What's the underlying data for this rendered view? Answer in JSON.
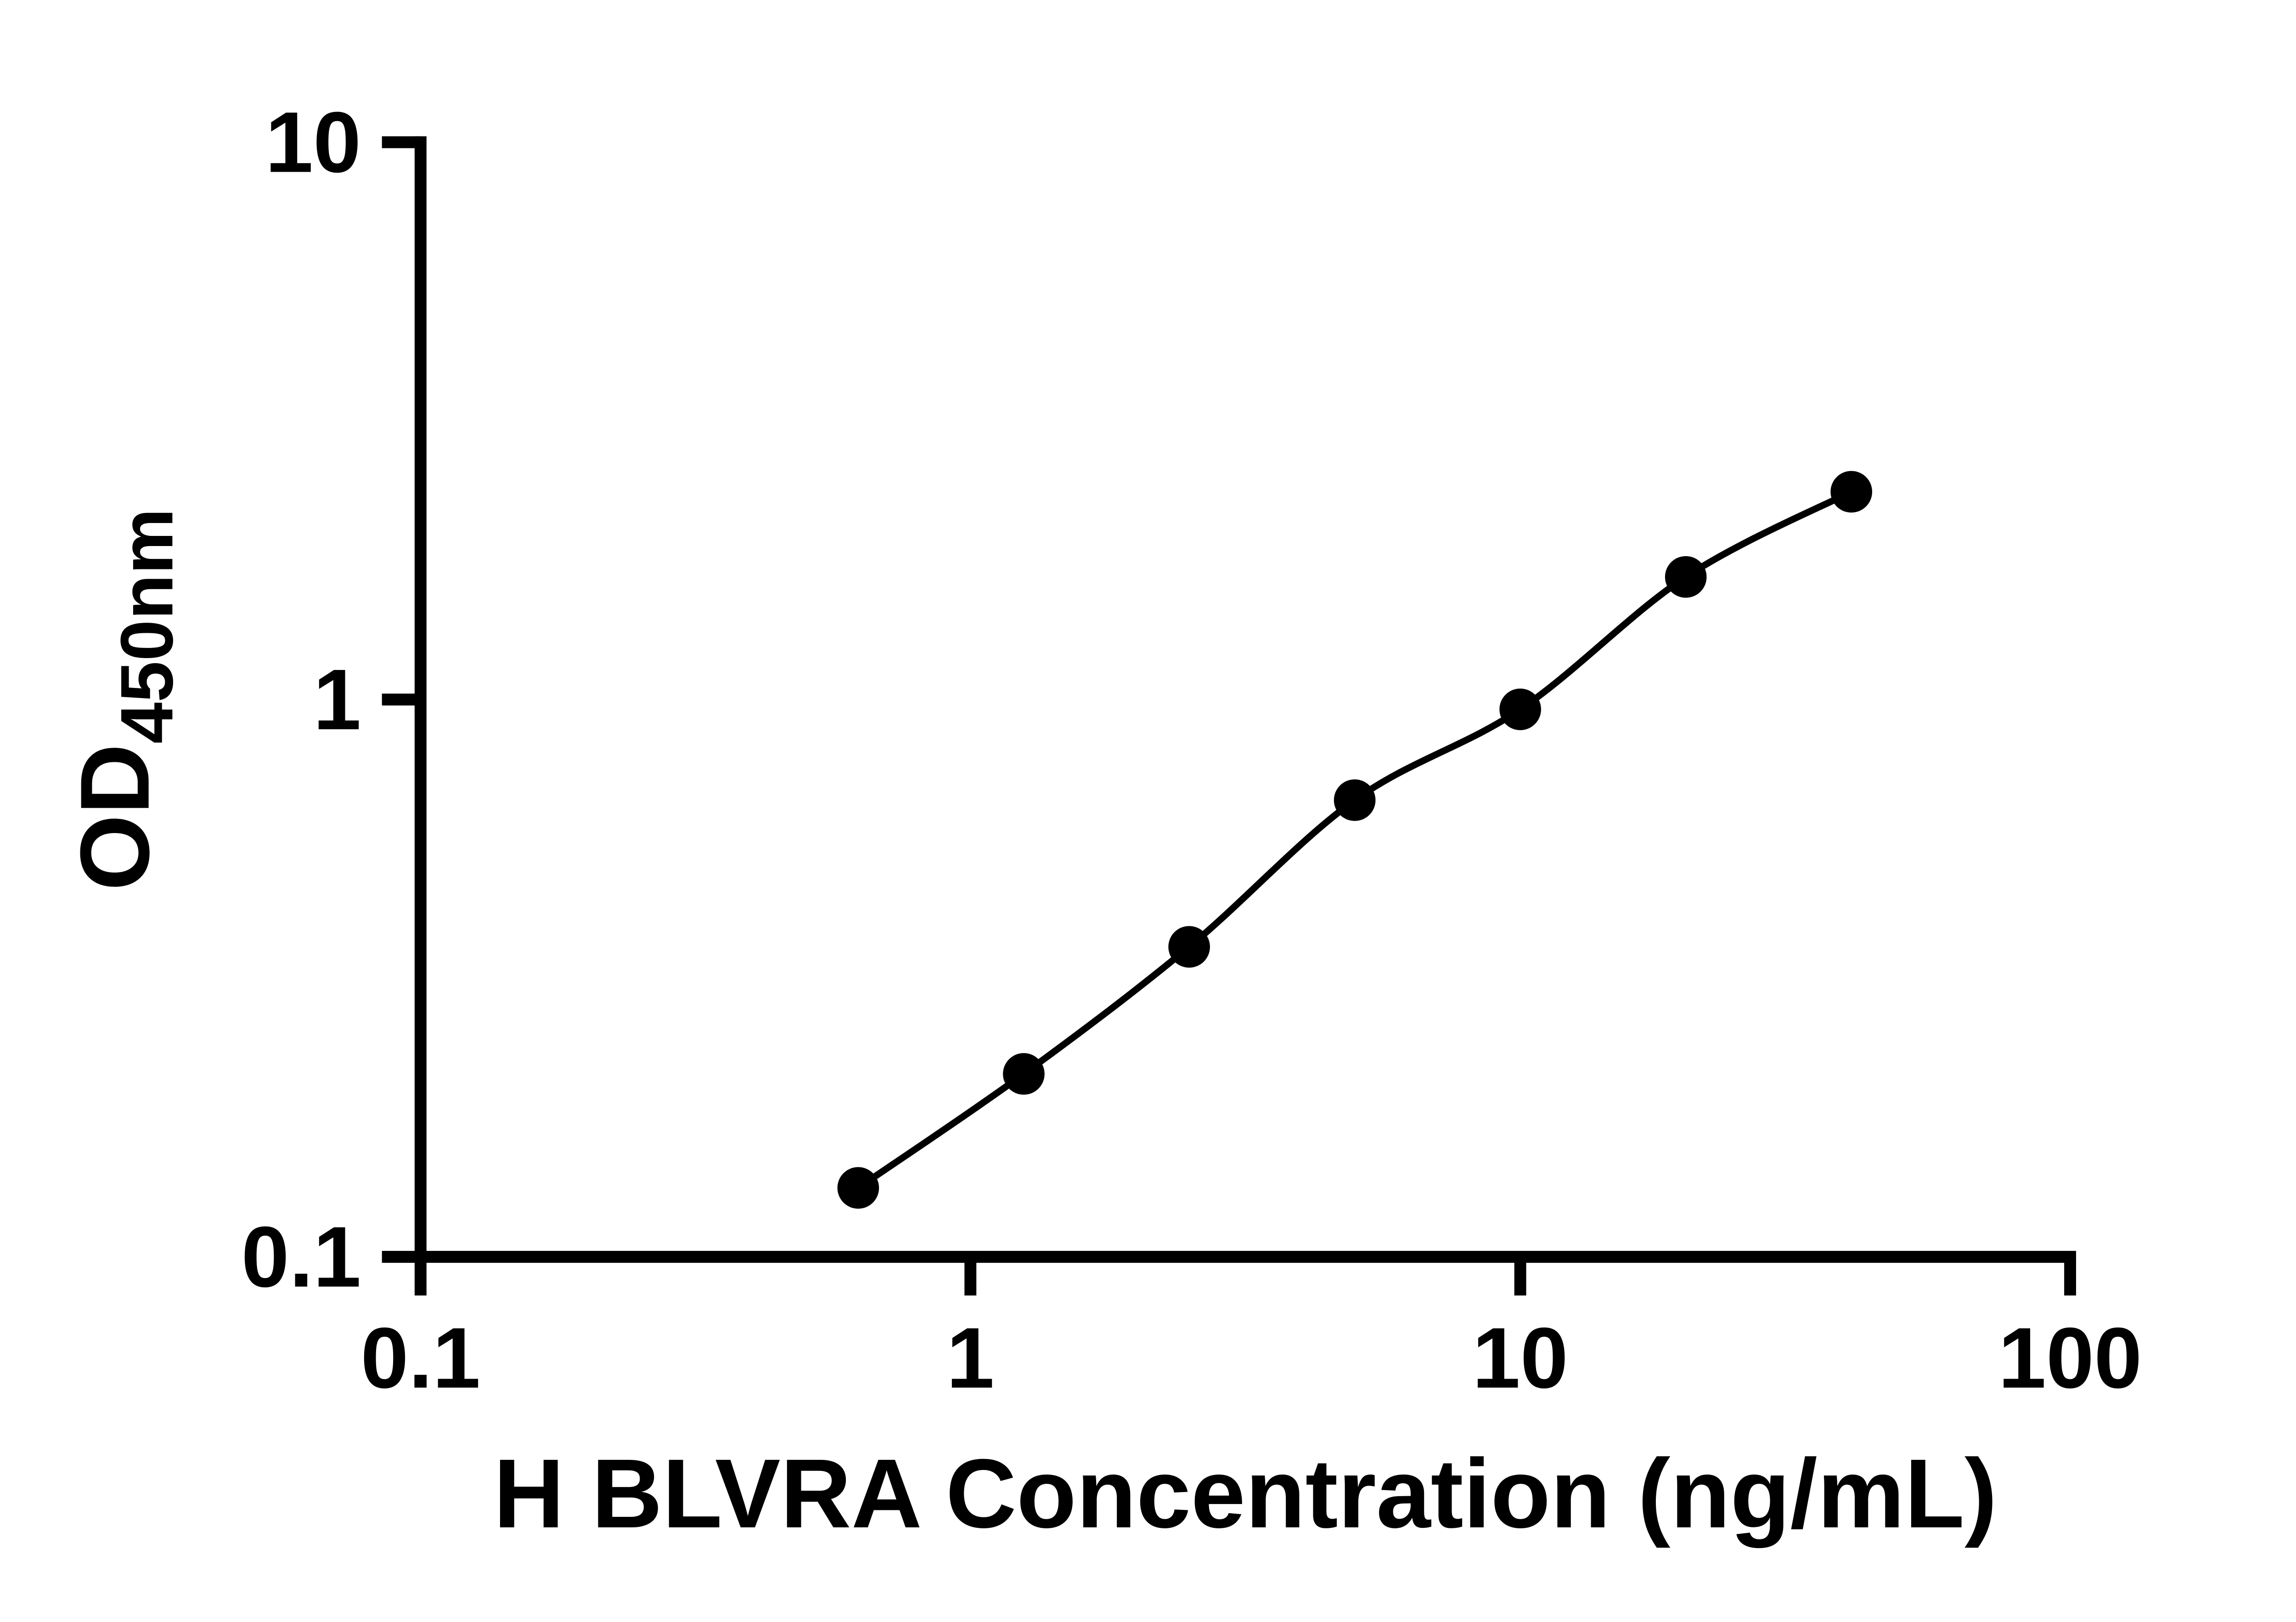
{
  "chart_data": {
    "type": "scatter",
    "title": "",
    "x": [
      0.625,
      1.25,
      2.5,
      5,
      10,
      20,
      40
    ],
    "y": [
      0.133,
      0.213,
      0.36,
      0.66,
      0.96,
      1.66,
      2.36
    ],
    "xlabel": "H BLVRA Concentration (ng/mL)",
    "ylabel": "OD",
    "ylabel_subscript": "450nm",
    "xscale": "log",
    "yscale": "log",
    "xlim": [
      0.1,
      100
    ],
    "ylim": [
      0.1,
      10
    ],
    "x_ticks": [
      {
        "value": 0.1,
        "label": "0.1"
      },
      {
        "value": 1,
        "label": "1"
      },
      {
        "value": 10,
        "label": "10"
      },
      {
        "value": 100,
        "label": "100"
      }
    ],
    "y_ticks": [
      {
        "value": 0.1,
        "label": "0.1"
      },
      {
        "value": 1,
        "label": "1"
      },
      {
        "value": 10,
        "label": "10"
      }
    ],
    "grid": false,
    "legend": null,
    "line": {
      "style": "smooth",
      "color": "#000000",
      "width": 4.5
    },
    "marker": {
      "shape": "circle",
      "color": "#000000",
      "radius": 14
    },
    "axis_color": "#000000",
    "background": "#ffffff"
  }
}
